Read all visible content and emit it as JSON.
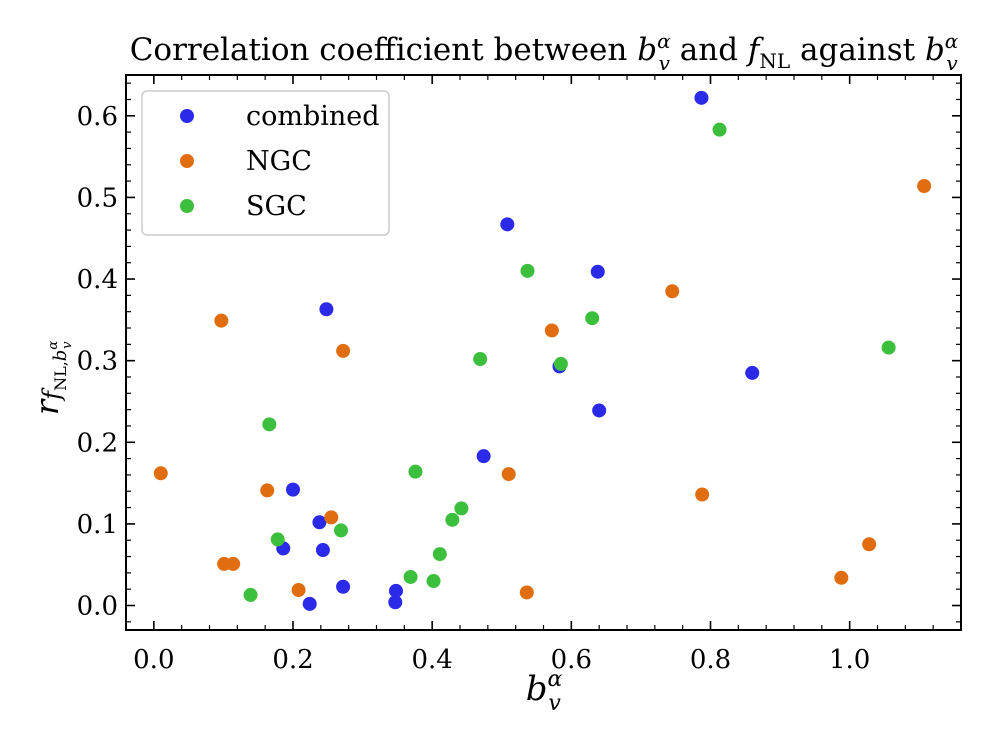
{
  "chart_data": {
    "type": "scatter",
    "title": {
      "prefix": "Correlation coefficient between ",
      "middle": " and ",
      "suffix": " against "
    },
    "xlabel": {
      "base": "b",
      "sub": "v",
      "sup": "α"
    },
    "ylabel": {
      "base": "r",
      "sub_main": "f",
      "sub_sub": "NL,",
      "sub_b": "b",
      "sub_b_sub": "v",
      "sub_b_sup": "α"
    },
    "f_symbol": "f",
    "f_sub": "NL",
    "xlim": [
      -0.04,
      1.16
    ],
    "ylim": [
      -0.03,
      0.65
    ],
    "xticks": [
      0.0,
      0.2,
      0.4,
      0.6,
      0.8,
      1.0
    ],
    "xtick_labels": [
      "0.0",
      "0.2",
      "0.4",
      "0.6",
      "0.8",
      "1.0"
    ],
    "yticks": [
      0.0,
      0.1,
      0.2,
      0.3,
      0.4,
      0.5,
      0.6
    ],
    "ytick_labels": [
      "0.0",
      "0.1",
      "0.2",
      "0.3",
      "0.4",
      "0.5",
      "0.6"
    ],
    "grid": false,
    "legend_position": "top-left",
    "series": [
      {
        "name": "combined",
        "color": "#2a2ae8",
        "points": [
          [
            0.787,
            0.622
          ],
          [
            0.508,
            0.467
          ],
          [
            0.638,
            0.409
          ],
          [
            0.248,
            0.363
          ],
          [
            0.583,
            0.293
          ],
          [
            0.86,
            0.285
          ],
          [
            0.64,
            0.239
          ],
          [
            0.474,
            0.183
          ],
          [
            0.2,
            0.142
          ],
          [
            0.238,
            0.102
          ],
          [
            0.186,
            0.07
          ],
          [
            0.243,
            0.068
          ],
          [
            0.272,
            0.023
          ],
          [
            0.348,
            0.018
          ],
          [
            0.224,
            0.002
          ],
          [
            0.347,
            0.004
          ]
        ]
      },
      {
        "name": "NGC",
        "color": "#e06d10",
        "points": [
          [
            1.107,
            0.514
          ],
          [
            0.745,
            0.385
          ],
          [
            0.097,
            0.349
          ],
          [
            0.572,
            0.337
          ],
          [
            0.272,
            0.312
          ],
          [
            0.01,
            0.162
          ],
          [
            0.51,
            0.161
          ],
          [
            0.163,
            0.141
          ],
          [
            0.788,
            0.136
          ],
          [
            0.255,
            0.108
          ],
          [
            1.028,
            0.075
          ],
          [
            0.101,
            0.051
          ],
          [
            0.114,
            0.051
          ],
          [
            0.988,
            0.034
          ],
          [
            0.208,
            0.019
          ],
          [
            0.536,
            0.016
          ]
        ]
      },
      {
        "name": "SGC",
        "color": "#3cbf3c",
        "points": [
          [
            0.813,
            0.583
          ],
          [
            0.537,
            0.41
          ],
          [
            0.63,
            0.352
          ],
          [
            1.056,
            0.316
          ],
          [
            0.469,
            0.302
          ],
          [
            0.585,
            0.296
          ],
          [
            0.166,
            0.222
          ],
          [
            0.376,
            0.164
          ],
          [
            0.442,
            0.119
          ],
          [
            0.429,
            0.105
          ],
          [
            0.269,
            0.092
          ],
          [
            0.178,
            0.081
          ],
          [
            0.411,
            0.063
          ],
          [
            0.369,
            0.035
          ],
          [
            0.402,
            0.03
          ],
          [
            0.139,
            0.013
          ]
        ]
      }
    ]
  }
}
